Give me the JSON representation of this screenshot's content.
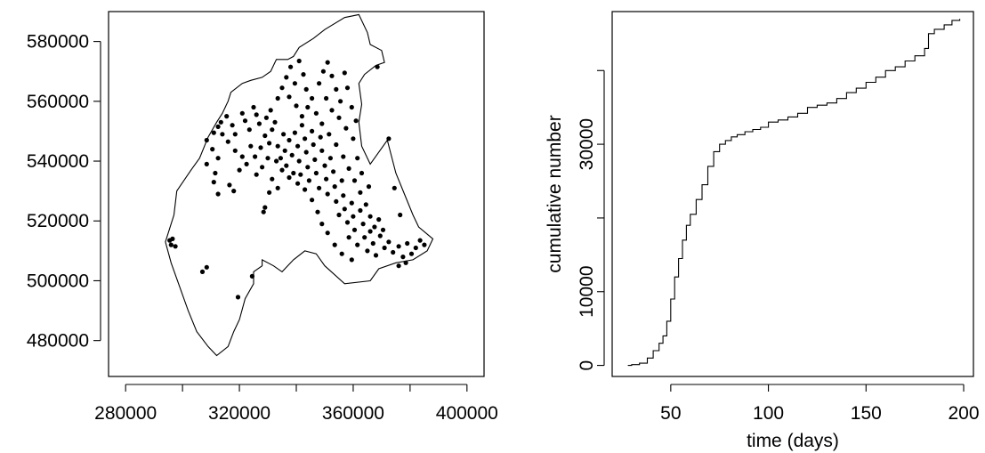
{
  "chart_data": [
    {
      "type": "scatter",
      "title": "",
      "xlabel": "",
      "ylabel": "",
      "xlim": [
        274000,
        406000
      ],
      "ylim": [
        468000,
        590000
      ],
      "x_ticks": [
        280000,
        300000,
        320000,
        340000,
        360000,
        380000,
        400000
      ],
      "x_tick_labels": [
        "280000",
        "",
        "320000",
        "",
        "360000",
        "",
        "400000"
      ],
      "y_ticks": [
        480000,
        500000,
        520000,
        540000,
        560000,
        580000
      ],
      "y_tick_labels": [
        "480000",
        "500000",
        "520000",
        "540000",
        "560000",
        "580000"
      ],
      "boundary": [
        [
          294000,
          513000
        ],
        [
          297000,
          522000
        ],
        [
          298000,
          530000
        ],
        [
          303000,
          537000
        ],
        [
          306000,
          541000
        ],
        [
          309000,
          548000
        ],
        [
          312000,
          553000
        ],
        [
          314000,
          556000
        ],
        [
          316000,
          560000
        ],
        [
          317000,
          563000
        ],
        [
          321000,
          566000
        ],
        [
          324000,
          567000
        ],
        [
          328000,
          568000
        ],
        [
          331000,
          570000
        ],
        [
          333000,
          574000
        ],
        [
          337000,
          574000
        ],
        [
          339000,
          575000
        ],
        [
          341000,
          578000
        ],
        [
          346000,
          581000
        ],
        [
          350000,
          584000
        ],
        [
          357000,
          588000
        ],
        [
          362000,
          589000
        ],
        [
          365000,
          583000
        ],
        [
          366000,
          579000
        ],
        [
          370000,
          577000
        ],
        [
          371000,
          573000
        ],
        [
          368000,
          572000
        ],
        [
          364000,
          569000
        ],
        [
          362000,
          566000
        ],
        [
          363000,
          559000
        ],
        [
          362000,
          553000
        ],
        [
          363000,
          545000
        ],
        [
          366000,
          539000
        ],
        [
          372000,
          547000
        ],
        [
          375000,
          536000
        ],
        [
          378000,
          529000
        ],
        [
          381000,
          522000
        ],
        [
          383000,
          518000
        ],
        [
          388000,
          514000
        ],
        [
          386000,
          510000
        ],
        [
          381000,
          507000
        ],
        [
          375000,
          506000
        ],
        [
          369000,
          504000
        ],
        [
          366000,
          500000
        ],
        [
          357000,
          499000
        ],
        [
          350000,
          505000
        ],
        [
          347000,
          509000
        ],
        [
          343000,
          510000
        ],
        [
          339000,
          507000
        ],
        [
          335000,
          503000
        ],
        [
          332000,
          505000
        ],
        [
          328000,
          507000
        ],
        [
          328000,
          505000
        ],
        [
          325000,
          503000
        ],
        [
          325000,
          499000
        ],
        [
          322000,
          494000
        ],
        [
          320000,
          487000
        ],
        [
          318000,
          483000
        ],
        [
          316000,
          478000
        ],
        [
          312000,
          475000
        ],
        [
          309000,
          478000
        ],
        [
          305000,
          483000
        ],
        [
          302000,
          490000
        ],
        [
          299000,
          498000
        ],
        [
          296000,
          506000
        ],
        [
          294000,
          513000
        ]
      ],
      "points": [
        [
          295500,
          513500
        ],
        [
          296000,
          512000
        ],
        [
          296500,
          514000
        ],
        [
          297500,
          511500
        ],
        [
          307000,
          503000
        ],
        [
          308500,
          504500
        ],
        [
          319500,
          494500
        ],
        [
          324500,
          501500
        ],
        [
          368500,
          571500
        ],
        [
          372500,
          547500
        ],
        [
          374500,
          531000
        ],
        [
          376500,
          522000
        ],
        [
          329000,
          524500
        ],
        [
          328500,
          523000
        ],
        [
          318000,
          530000
        ],
        [
          316500,
          532000
        ],
        [
          312500,
          529000
        ],
        [
          311000,
          533000
        ],
        [
          311500,
          536000
        ],
        [
          308500,
          539000
        ],
        [
          312500,
          541000
        ],
        [
          310500,
          544000
        ],
        [
          308500,
          547000
        ],
        [
          311000,
          549500
        ],
        [
          312500,
          551500
        ],
        [
          313500,
          553000
        ],
        [
          315500,
          555000
        ],
        [
          317500,
          552000
        ],
        [
          318500,
          549000
        ],
        [
          321000,
          556000
        ],
        [
          322000,
          553500
        ],
        [
          323500,
          550500
        ],
        [
          325000,
          558000
        ],
        [
          326000,
          555500
        ],
        [
          327000,
          552500
        ],
        [
          329000,
          548500
        ],
        [
          330500,
          546000
        ],
        [
          331000,
          557000
        ],
        [
          331500,
          550500
        ],
        [
          329500,
          554500
        ],
        [
          332500,
          553000
        ],
        [
          333500,
          545000
        ],
        [
          334500,
          541000
        ],
        [
          335500,
          549000
        ],
        [
          336000,
          543500
        ],
        [
          336500,
          538500
        ],
        [
          337500,
          547000
        ],
        [
          338500,
          542000
        ],
        [
          339000,
          536000
        ],
        [
          339500,
          549500
        ],
        [
          340500,
          545000
        ],
        [
          341000,
          540000
        ],
        [
          341500,
          535500
        ],
        [
          342000,
          552000
        ],
        [
          343000,
          547500
        ],
        [
          343500,
          543000
        ],
        [
          344000,
          538000
        ],
        [
          344500,
          533500
        ],
        [
          345500,
          550000
        ],
        [
          346000,
          545500
        ],
        [
          346500,
          540500
        ],
        [
          347000,
          536000
        ],
        [
          348000,
          531000
        ],
        [
          348500,
          548000
        ],
        [
          349000,
          543500
        ],
        [
          350000,
          538500
        ],
        [
          350500,
          534000
        ],
        [
          351000,
          529000
        ],
        [
          352000,
          541000
        ],
        [
          353000,
          536500
        ],
        [
          353500,
          531500
        ],
        [
          354000,
          526500
        ],
        [
          355000,
          522000
        ],
        [
          356000,
          533500
        ],
        [
          356500,
          528500
        ],
        [
          357000,
          524000
        ],
        [
          358000,
          519500
        ],
        [
          358500,
          514500
        ],
        [
          359500,
          526000
        ],
        [
          360000,
          521500
        ],
        [
          360500,
          517000
        ],
        [
          361500,
          512000
        ],
        [
          362500,
          523500
        ],
        [
          363500,
          519000
        ],
        [
          364000,
          514500
        ],
        [
          365000,
          510000
        ],
        [
          366000,
          516500
        ],
        [
          367000,
          512500
        ],
        [
          368000,
          508500
        ],
        [
          369500,
          515000
        ],
        [
          371000,
          511000
        ],
        [
          372500,
          513000
        ],
        [
          374000,
          509500
        ],
        [
          376000,
          511500
        ],
        [
          377500,
          508000
        ],
        [
          379000,
          512500
        ],
        [
          380500,
          509000
        ],
        [
          382000,
          511000
        ],
        [
          383500,
          513500
        ],
        [
          385000,
          512000
        ],
        [
          378500,
          506000
        ],
        [
          376000,
          505000
        ],
        [
          359500,
          507000
        ],
        [
          356000,
          509000
        ],
        [
          353500,
          512000
        ],
        [
          351000,
          516000
        ],
        [
          349000,
          519000
        ],
        [
          347500,
          523000
        ],
        [
          345500,
          527000
        ],
        [
          343000,
          530500
        ],
        [
          340500,
          532500
        ],
        [
          337500,
          534500
        ],
        [
          335000,
          537000
        ],
        [
          333000,
          540000
        ],
        [
          333500,
          561000
        ],
        [
          335000,
          564500
        ],
        [
          336500,
          568000
        ],
        [
          338000,
          571500
        ],
        [
          339500,
          566000
        ],
        [
          341000,
          573500
        ],
        [
          342500,
          569000
        ],
        [
          343500,
          564000
        ],
        [
          345500,
          561000
        ],
        [
          344000,
          558000
        ],
        [
          342000,
          555000
        ],
        [
          340000,
          558500
        ],
        [
          337500,
          561500
        ],
        [
          348000,
          566000
        ],
        [
          349500,
          570000
        ],
        [
          351000,
          573000
        ],
        [
          352500,
          568500
        ],
        [
          354000,
          564000
        ],
        [
          355500,
          560000
        ],
        [
          357000,
          569500
        ],
        [
          358000,
          564500
        ],
        [
          359500,
          558000
        ],
        [
          361000,
          553500
        ],
        [
          360000,
          547500
        ],
        [
          357500,
          551000
        ],
        [
          355000,
          554500
        ],
        [
          352500,
          557000
        ],
        [
          350500,
          561000
        ],
        [
          347000,
          556000
        ],
        [
          349000,
          552500
        ],
        [
          351500,
          549000
        ],
        [
          354000,
          545500
        ],
        [
          356500,
          541500
        ],
        [
          358500,
          537500
        ],
        [
          360500,
          533500
        ],
        [
          362500,
          529500
        ],
        [
          364500,
          525500
        ],
        [
          366000,
          521500
        ],
        [
          367500,
          518000
        ],
        [
          369000,
          520500
        ],
        [
          370500,
          517000
        ],
        [
          363000,
          536000
        ],
        [
          365500,
          531500
        ],
        [
          361500,
          541000
        ],
        [
          324000,
          545000
        ],
        [
          321000,
          541500
        ],
        [
          318500,
          543500
        ],
        [
          316000,
          546500
        ],
        [
          314000,
          549000
        ],
        [
          320000,
          537000
        ],
        [
          322500,
          539000
        ],
        [
          325500,
          541500
        ],
        [
          327500,
          544500
        ],
        [
          330000,
          541000
        ],
        [
          328000,
          538000
        ],
        [
          326000,
          535500
        ],
        [
          331500,
          534000
        ],
        [
          333500,
          531000
        ],
        [
          330500,
          529500
        ]
      ]
    },
    {
      "type": "line",
      "title": "",
      "xlabel": "time (days)",
      "ylabel": "cumulative number",
      "xlim": [
        20,
        205
      ],
      "ylim": [
        -1500,
        48000
      ],
      "x_ticks": [
        50,
        100,
        150,
        200
      ],
      "x_tick_labels": [
        "50",
        "100",
        "150",
        "200"
      ],
      "y_ticks": [
        0,
        10000,
        20000,
        30000,
        40000
      ],
      "y_tick_labels": [
        "0",
        "10000",
        "",
        "30000",
        ""
      ],
      "x": [
        28,
        30,
        34,
        38,
        41,
        44,
        46,
        48,
        50,
        52,
        54,
        56,
        58,
        60,
        63,
        66,
        69,
        72,
        75,
        78,
        81,
        84,
        88,
        92,
        96,
        100,
        105,
        110,
        115,
        120,
        125,
        130,
        135,
        140,
        145,
        150,
        155,
        160,
        165,
        170,
        175,
        180,
        182,
        185,
        190,
        194,
        198
      ],
      "y": [
        0,
        100,
        300,
        1000,
        2000,
        3000,
        4000,
        6000,
        9000,
        12000,
        14500,
        17000,
        19000,
        20500,
        22500,
        24500,
        27000,
        29000,
        30000,
        30500,
        31000,
        31300,
        31700,
        32000,
        32300,
        33000,
        33300,
        33700,
        34200,
        35000,
        35300,
        35600,
        36200,
        37000,
        37600,
        38400,
        39100,
        40000,
        40500,
        41300,
        42000,
        43000,
        45000,
        45600,
        46200,
        46800,
        47000
      ]
    }
  ]
}
